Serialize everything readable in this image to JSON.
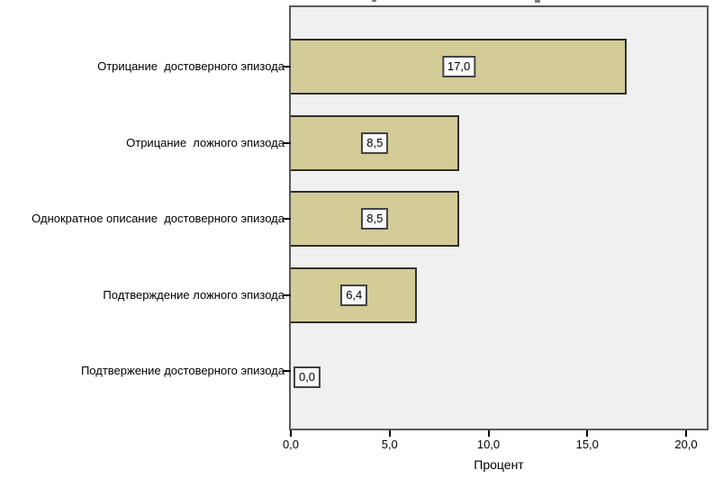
{
  "chart_data": {
    "type": "bar",
    "orientation": "horizontal",
    "title": "",
    "categories": [
      "Отрицание  достоверного эпизода",
      "Отрицание  ложного эпизода",
      "Однократное описание  достоверного эпизода",
      "Подтверждение ложного эпизода",
      "Подтвержение достоверного эпизода"
    ],
    "values": [
      17.0,
      8.5,
      8.5,
      6.4,
      0.0
    ],
    "value_labels": [
      "17,0",
      "8,5",
      "8,5",
      "6,4",
      "0,0"
    ],
    "xlabel": "Процент",
    "ylabel": "",
    "xlim": [
      0,
      21.2
    ],
    "x_ticks": [
      {
        "value": 0,
        "label": "0,0"
      },
      {
        "value": 5,
        "label": "5,0"
      },
      {
        "value": 10,
        "label": "10,0"
      },
      {
        "value": 15,
        "label": "15,0"
      },
      {
        "value": 20,
        "label": "20,0"
      }
    ],
    "grid": false,
    "legend": "none",
    "colors": {
      "bar_fill": "#d3cc97",
      "bar_border": "#30302a",
      "plot_bg": "#f0f0f0",
      "plot_border": "#595959",
      "value_box_bg": "#fbfbfb",
      "value_box_border": "#434343",
      "text": "#000000"
    }
  }
}
